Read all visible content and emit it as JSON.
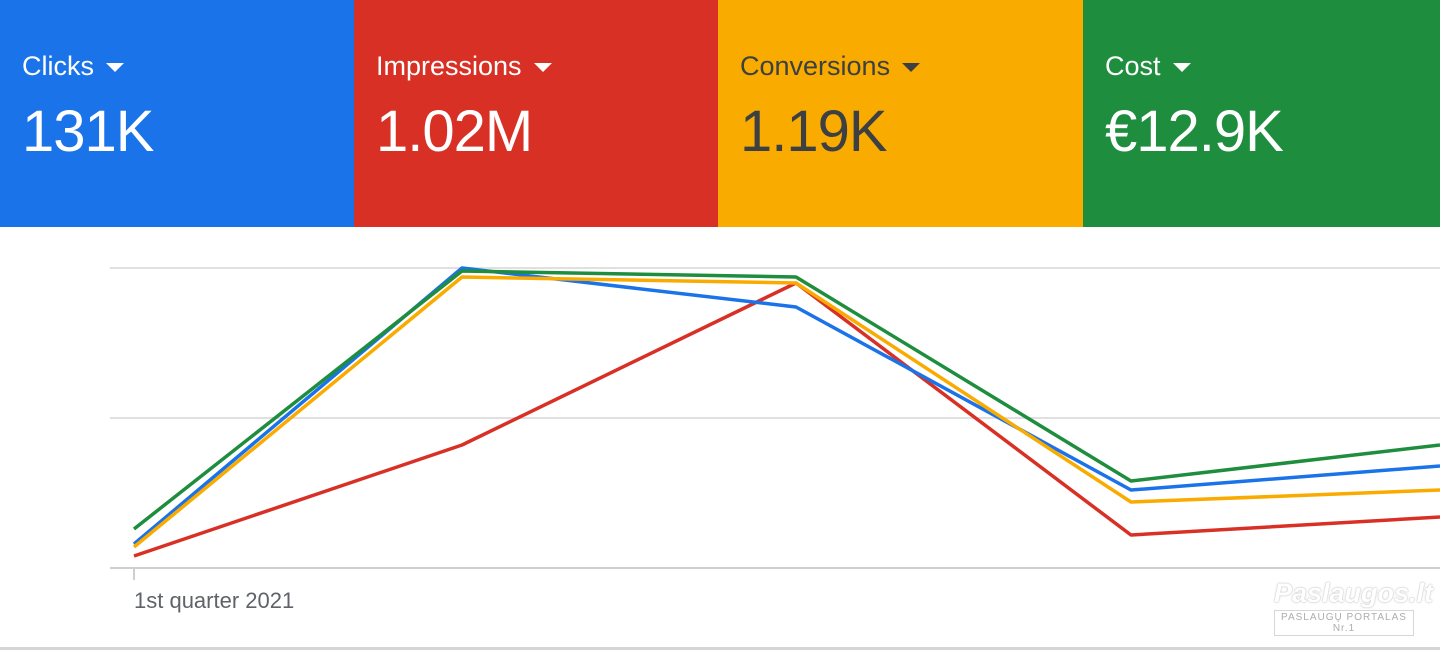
{
  "metrics": [
    {
      "label": "Clicks",
      "value": "131K",
      "bg": "#1a73e8",
      "fg": "#ffffff"
    },
    {
      "label": "Impressions",
      "value": "1.02M",
      "bg": "#d93025",
      "fg": "#ffffff"
    },
    {
      "label": "Conversions",
      "value": "1.19K",
      "bg": "#f9ab00",
      "fg": "#3c4043"
    },
    {
      "label": "Cost",
      "value": "€12.9K",
      "bg": "#1e8e3e",
      "fg": "#ffffff"
    }
  ],
  "chart_data": {
    "type": "line",
    "x": [
      0,
      1,
      2,
      3,
      4
    ],
    "tick_labels": [
      "1st quarter 2021"
    ],
    "y_scale": "normalized per series (no printed y tick labels)",
    "ylim": [
      0,
      100
    ],
    "grid": true,
    "series": [
      {
        "name": "Clicks",
        "color": "#1a73e8",
        "values": [
          8,
          100,
          87,
          26,
          34
        ]
      },
      {
        "name": "Impressions",
        "color": "#d93025",
        "values": [
          4,
          41,
          95,
          11,
          17
        ]
      },
      {
        "name": "Conversions",
        "color": "#f9ab00",
        "values": [
          7,
          97,
          95,
          22,
          26
        ]
      },
      {
        "name": "Cost",
        "color": "#1e8e3e",
        "values": [
          13,
          99,
          97,
          29,
          41
        ]
      }
    ]
  },
  "watermark": {
    "title": "Paslaugos.lt",
    "subtitle": "PASLAUGŲ PORTALAS  Nr.1"
  }
}
